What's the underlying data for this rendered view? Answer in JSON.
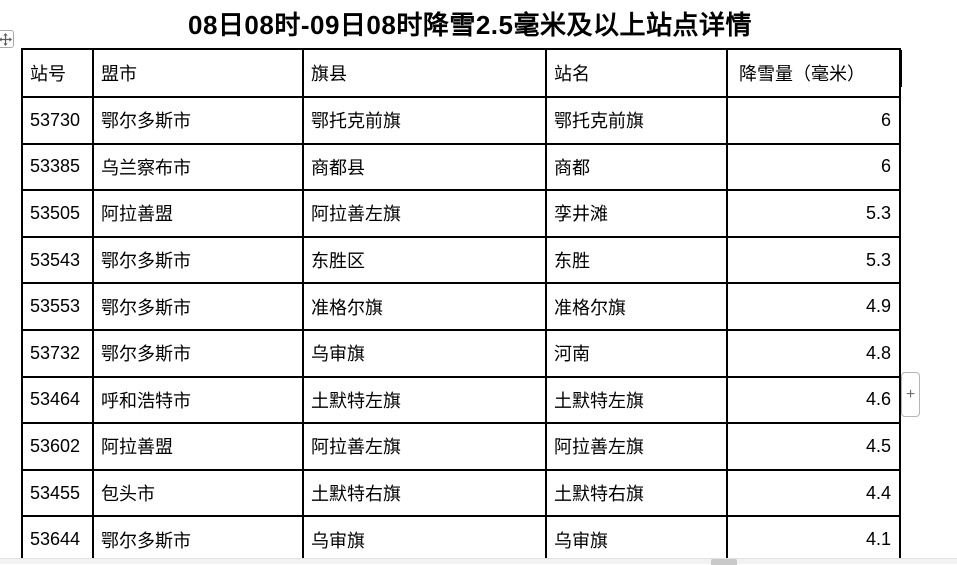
{
  "title": "08日08时-09日08时降雪2.5毫米及以上站点详情",
  "table": {
    "columns": [
      "站号",
      "盟市",
      "旗县",
      "站名",
      "降雪量（毫米）"
    ],
    "rows": [
      [
        "53730",
        "鄂尔多斯市",
        "鄂托克前旗",
        "鄂托克前旗",
        "6"
      ],
      [
        "53385",
        "乌兰察布市",
        "商都县",
        "商都",
        "6"
      ],
      [
        "53505",
        "阿拉善盟",
        "阿拉善左旗",
        "孪井滩",
        "5.3"
      ],
      [
        "53543",
        "鄂尔多斯市",
        "东胜区",
        "东胜",
        "5.3"
      ],
      [
        "53553",
        "鄂尔多斯市",
        "准格尔旗",
        "准格尔旗",
        "4.9"
      ],
      [
        "53732",
        "鄂尔多斯市",
        "乌审旗",
        "河南",
        "4.8"
      ],
      [
        "53464",
        "呼和浩特市",
        "土默特左旗",
        "土默特左旗",
        "4.6"
      ],
      [
        "53602",
        "阿拉善盟",
        "阿拉善左旗",
        "阿拉善左旗",
        "4.5"
      ],
      [
        "53455",
        "包头市",
        "土默特右旗",
        "土默特右旗",
        "4.4"
      ],
      [
        "53644",
        "鄂尔多斯市",
        "乌审旗",
        "乌审旗",
        "4.1"
      ]
    ]
  },
  "controls": {
    "move_handle_icon": "table-move-handle",
    "plus_button_label": "+"
  },
  "colors": {
    "table_border": "#000000",
    "scrollbar_track": "#f2f2f2",
    "scrollbar_thumb": "#c9c9c9",
    "plus_button_border": "#b5b5b5"
  }
}
